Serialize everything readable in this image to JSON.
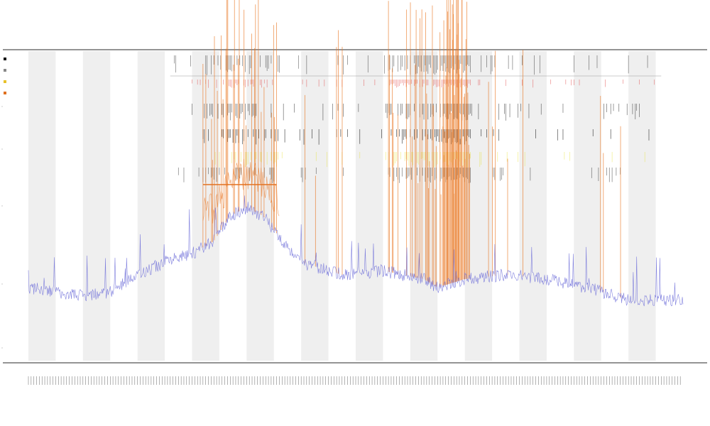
{
  "chart_data": {
    "type": "line",
    "title": "",
    "subtitle_lines": [
      "",
      ""
    ],
    "xlabel": "",
    "ylabel": "",
    "grid": false,
    "legend_position": "top-left",
    "legend_entries": [
      {
        "name": "",
        "color": "#111111"
      },
      {
        "name": "",
        "color": "#888888"
      },
      {
        "name": "",
        "color": "#e8c12a"
      },
      {
        "name": "",
        "color": "#e07020"
      }
    ],
    "colors": {
      "baseline": "#6b6bd8",
      "peaks": "#e8741f",
      "flagged": "#e04040",
      "highlight_band": "#e6e029",
      "band_shading": "#efefef",
      "ticks": "#111111"
    },
    "x_domain": [
      0,
      240
    ],
    "y_domain": [
      0,
      100
    ],
    "x_tick_count": 240,
    "shaded_band_count": 12,
    "tracks": [
      {
        "name": "ticks-top",
        "label": ""
      },
      {
        "name": "flagged",
        "label": ""
      },
      {
        "name": "group-1",
        "label": ""
      },
      {
        "name": "group-2",
        "label": ""
      },
      {
        "name": "group-3",
        "label": ""
      },
      {
        "name": "group-4",
        "label": ""
      }
    ],
    "segment_bar": {
      "x_start": 64,
      "x_end": 91,
      "color": "#e07020"
    },
    "baseline_profile": [
      [
        0,
        16
      ],
      [
        10,
        15
      ],
      [
        20,
        14
      ],
      [
        30,
        15
      ],
      [
        40,
        19
      ],
      [
        50,
        22
      ],
      [
        60,
        24
      ],
      [
        68,
        27
      ],
      [
        74,
        33
      ],
      [
        80,
        35
      ],
      [
        86,
        33
      ],
      [
        92,
        28
      ],
      [
        100,
        22
      ],
      [
        115,
        19
      ],
      [
        130,
        20
      ],
      [
        145,
        18
      ],
      [
        150,
        16
      ],
      [
        160,
        18
      ],
      [
        175,
        19
      ],
      [
        190,
        18
      ],
      [
        205,
        16
      ],
      [
        220,
        13
      ],
      [
        240,
        13
      ]
    ],
    "peak_clusters": [
      {
        "x_start": 64,
        "x_end": 92,
        "height": 62,
        "density": 0.35
      },
      {
        "x_start": 100,
        "x_end": 118,
        "height": 58,
        "density": 0.12
      },
      {
        "x_start": 132,
        "x_end": 160,
        "height": 70,
        "density": 0.55
      },
      {
        "x_start": 152,
        "x_end": 162,
        "height": 85,
        "density": 0.9
      },
      {
        "x_start": 168,
        "x_end": 182,
        "height": 55,
        "density": 0.15
      },
      {
        "x_start": 208,
        "x_end": 220,
        "height": 50,
        "density": 0.12
      }
    ]
  }
}
